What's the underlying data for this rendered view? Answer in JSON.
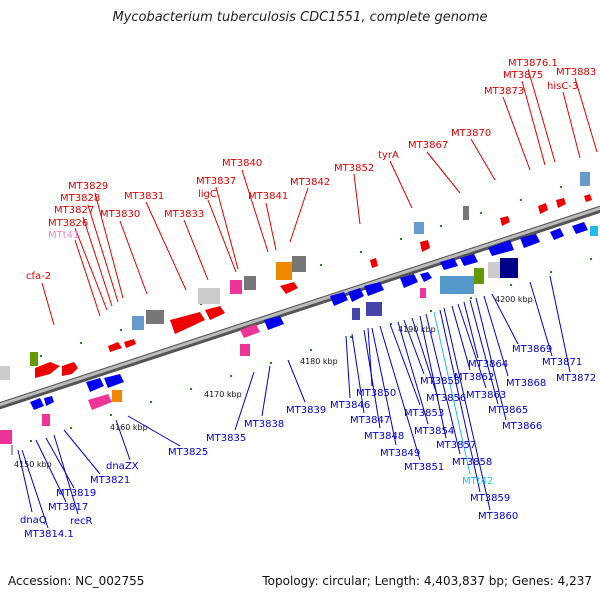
{
  "title": "Mycobacterium tuberculosis CDC1551, complete genome",
  "accession_label": "Accession: NC_002755",
  "topology_label": "Topology: circular; Length: 4,403,837 bp; Genes: 4,237",
  "colors": {
    "forward_label": "#dd0000",
    "reverse_label": "#0000cc",
    "trna_label_top": "#ee88cc",
    "trna_label_bottom": "#22bbee",
    "axis": "#999999"
  },
  "scale_labels": [
    "4150 kbp",
    "4160 kbp",
    "4170 kbp",
    "4180 kbp",
    "4190 kbp",
    "4200 kbp"
  ],
  "top_genes": [
    "cfa-2",
    "MTt41",
    "MT3826",
    "MT3827",
    "MT3828",
    "MT3829",
    "MT3830",
    "MT3831",
    "MT3833",
    "MT3837",
    "ligC",
    "MT3840",
    "MT3841",
    "MT3842",
    "MT3852",
    "tyrA",
    "MT3867",
    "MT3870",
    "MT3873",
    "MT3875",
    "MT3876.1",
    "hisC-3",
    "MT3883"
  ],
  "bottom_genes": [
    "dnaQ",
    "MT3814.1",
    "MT3817",
    "recR",
    "MT3819",
    "MT3821",
    "dnaZX",
    "MT3825",
    "MT3835",
    "MT3838",
    "MT3839",
    "MT3846",
    "MT3847",
    "MT3848",
    "MT3849",
    "MT3850",
    "MT3851",
    "MT3853",
    "MT3854",
    "MT3855",
    "MT3856",
    "MT3857",
    "MT3858",
    "MTt42",
    "MT3859",
    "MT3860",
    "MT3862",
    "MT3863",
    "MT3864",
    "MT3865",
    "MT3866",
    "MT3868",
    "MT3869",
    "MT3871",
    "MT3872"
  ]
}
